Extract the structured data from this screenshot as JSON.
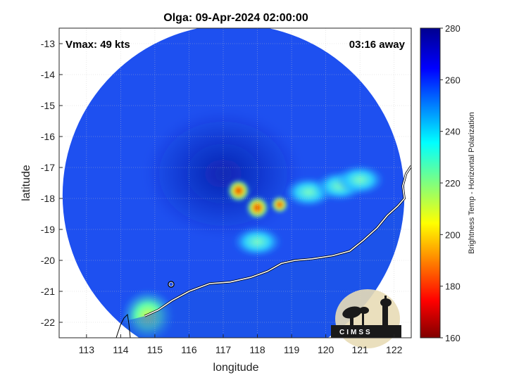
{
  "header": {
    "title": "Olga: 09-Apr-2024 02:00:00",
    "vmax": "Vmax: 49 kts",
    "time_away": "03:16 away"
  },
  "logo": {
    "text": "CIMSS"
  },
  "colorbar": {
    "label": "Brightness Temp - Horizontal Polarization",
    "range": [
      160,
      280
    ],
    "ticks": [
      "280",
      "260",
      "240",
      "220",
      "200",
      "180",
      "160"
    ],
    "colormap": "jet"
  },
  "chart_data": {
    "type": "heatmap",
    "title": "Olga: 09-Apr-2024 02:00:00",
    "xlabel": "longitude",
    "ylabel": "latitude",
    "xlim": [
      112.2,
      122.5
    ],
    "ylim": [
      -22.5,
      -12.5
    ],
    "x_ticks": [
      "113",
      "114",
      "115",
      "116",
      "117",
      "118",
      "119",
      "120",
      "121",
      "122"
    ],
    "y_ticks": [
      "-13",
      "-14",
      "-15",
      "-16",
      "-17",
      "-18",
      "-19",
      "-20",
      "-21",
      "-22"
    ],
    "grid": true,
    "swath": {
      "center_lon": 117.3,
      "center_lat": -17.9,
      "radius_deg": 5.0
    },
    "background_temp": 258,
    "features": [
      {
        "kind": "storm-center-warm",
        "lon": 117.0,
        "lat": -17.2,
        "temp": 268
      },
      {
        "kind": "convection",
        "lon": 117.45,
        "lat": -17.75,
        "temp": 195
      },
      {
        "kind": "convection",
        "lon": 118.0,
        "lat": -18.3,
        "temp": 185
      },
      {
        "kind": "convection",
        "lon": 118.65,
        "lat": -18.2,
        "temp": 215
      },
      {
        "kind": "rainband",
        "lon": 119.5,
        "lat": -17.8,
        "temp": 228
      },
      {
        "kind": "rainband",
        "lon": 120.4,
        "lat": -17.6,
        "temp": 225
      },
      {
        "kind": "rainband",
        "lon": 121.0,
        "lat": -17.4,
        "temp": 228
      },
      {
        "kind": "rainband",
        "lon": 118.0,
        "lat": -19.4,
        "temp": 232
      },
      {
        "kind": "land-warm",
        "lon": 114.8,
        "lat": -21.8,
        "temp": 222
      }
    ],
    "coastline": [
      [
        114.7,
        -21.8
      ],
      [
        115.1,
        -21.6
      ],
      [
        115.5,
        -21.3
      ],
      [
        116.0,
        -21.0
      ],
      [
        116.6,
        -20.75
      ],
      [
        117.2,
        -20.7
      ],
      [
        117.8,
        -20.55
      ],
      [
        118.3,
        -20.35
      ],
      [
        118.7,
        -20.1
      ],
      [
        119.1,
        -20.0
      ],
      [
        119.6,
        -19.95
      ],
      [
        120.2,
        -19.85
      ],
      [
        120.7,
        -19.7
      ],
      [
        121.1,
        -19.35
      ],
      [
        121.5,
        -18.95
      ],
      [
        121.8,
        -18.55
      ],
      [
        122.1,
        -18.25
      ],
      [
        122.3,
        -18.0
      ],
      [
        122.25,
        -17.6
      ],
      [
        122.35,
        -17.2
      ],
      [
        122.5,
        -16.95
      ]
    ]
  }
}
